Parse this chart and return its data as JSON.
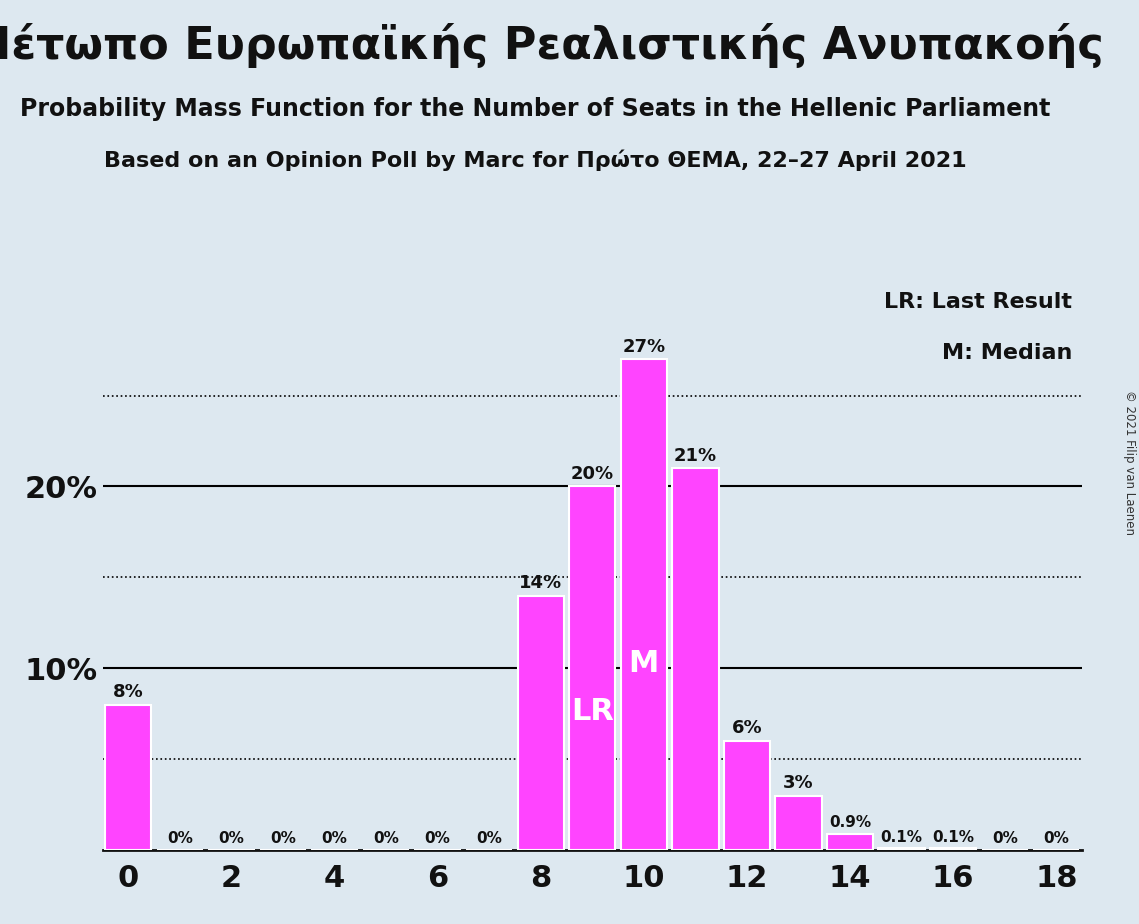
{
  "title_greek": "Μέτωπο Ευρωπαϊκής Ρεαλιστικής Ανυπακοής",
  "subtitle1": "Probability Mass Function for the Number of Seats in the Hellenic Parliament",
  "subtitle2": "Based on an Opinion Poll by Marc for Πρώτο ΘΕΜΑ, 22–27 April 2021",
  "copyright": "© 2021 Filip van Laenen",
  "seats": [
    0,
    1,
    2,
    3,
    4,
    5,
    6,
    7,
    8,
    9,
    10,
    11,
    12,
    13,
    14,
    15,
    16,
    17,
    18
  ],
  "probabilities": [
    8,
    0,
    0,
    0,
    0,
    0,
    0,
    0,
    14,
    20,
    27,
    21,
    6,
    3,
    0.9,
    0.1,
    0.1,
    0,
    0
  ],
  "bar_color": "#FF44FF",
  "background_color": "#DDE8F0",
  "label_color_dark": "#111111",
  "label_color_white": "#FFFFFF",
  "lr_seat": 9,
  "median_seat": 10,
  "ymax": 31,
  "xlim": [
    -0.5,
    18.5
  ],
  "legend_lr": "LR: Last Result",
  "legend_m": "M: Median",
  "solid_lines": [
    10,
    20
  ],
  "dotted_lines": [
    5,
    15,
    25
  ],
  "label_fontsize_small": 11,
  "label_fontsize_large": 13,
  "tick_fontsize": 22,
  "legend_fontsize": 16,
  "title_fontsize": 32,
  "subtitle1_fontsize": 17,
  "subtitle2_fontsize": 16,
  "lrm_fontsize": 22
}
